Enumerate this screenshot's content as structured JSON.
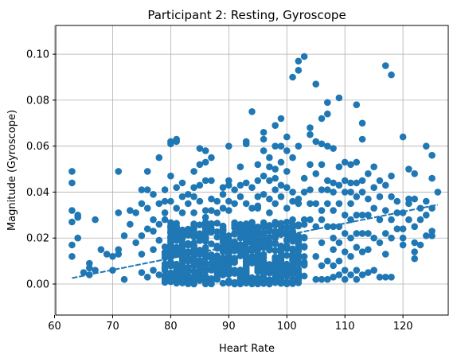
{
  "chart_data": {
    "type": "scatter",
    "title": "Participant 2: Resting, Gyroscope",
    "xlabel": "Heart Rate",
    "ylabel": "Magnitude (Gyroscope)",
    "xlim": [
      60.2,
      127.8
    ],
    "ylim": [
      -0.0135,
      0.1125
    ],
    "xticks": [
      60,
      70,
      80,
      90,
      100,
      110,
      120
    ],
    "xtick_labels": [
      "60",
      "70",
      "80",
      "90",
      "100",
      "110",
      "120"
    ],
    "yticks": [
      0.0,
      0.02,
      0.04,
      0.06,
      0.08,
      0.1
    ],
    "ytick_labels": [
      "0.00",
      "0.02",
      "0.04",
      "0.06",
      "0.08",
      "0.10"
    ],
    "grid": true,
    "colors": {
      "points": "#1f77b4",
      "grid": "#b0b0b0",
      "frame": "#000000"
    },
    "trend_line": {
      "x": [
        63,
        126
      ],
      "y": [
        0.0026,
        0.0345
      ]
    },
    "dense_cluster": {
      "x_range": [
        79,
        103
      ],
      "y_range": [
        0.0,
        0.027
      ],
      "count": 700
    },
    "points": [
      [
        63,
        0.049
      ],
      [
        63,
        0.044
      ],
      [
        63,
        0.032
      ],
      [
        63,
        0.027
      ],
      [
        63,
        0.017
      ],
      [
        63,
        0.012
      ],
      [
        64,
        0.03
      ],
      [
        64,
        0.02
      ],
      [
        64,
        0.029
      ],
      [
        65,
        0.005
      ],
      [
        66,
        0.007
      ],
      [
        66,
        0.004
      ],
      [
        66,
        0.009
      ],
      [
        67,
        0.028
      ],
      [
        67,
        0.006
      ],
      [
        68,
        0.015
      ],
      [
        69,
        0.013
      ],
      [
        70,
        0.006
      ],
      [
        70,
        0.012
      ],
      [
        71,
        0.049
      ],
      [
        71,
        0.031
      ],
      [
        71,
        0.015
      ],
      [
        71,
        0.013
      ],
      [
        72,
        0.002
      ],
      [
        72,
        0.021
      ],
      [
        73,
        0.026
      ],
      [
        73,
        0.032
      ],
      [
        74,
        0.031
      ],
      [
        74,
        0.018
      ],
      [
        75,
        0.041
      ],
      [
        75,
        0.035
      ],
      [
        75,
        0.021
      ],
      [
        75,
        0.013
      ],
      [
        75,
        0.005
      ],
      [
        76,
        0.049
      ],
      [
        76,
        0.033
      ],
      [
        76,
        0.024
      ],
      [
        76,
        0.041
      ],
      [
        76,
        0.003
      ],
      [
        77,
        0.028
      ],
      [
        77,
        0.023
      ],
      [
        77,
        0.015
      ],
      [
        77,
        0.006
      ],
      [
        77,
        0.039
      ],
      [
        78,
        0.055
      ],
      [
        78,
        0.035
      ],
      [
        78,
        0.026
      ],
      [
        78,
        0.019
      ],
      [
        78,
        0.004
      ],
      [
        79,
        0.041
      ],
      [
        79,
        0.036
      ],
      [
        79,
        0.031
      ],
      [
        79,
        0.028
      ],
      [
        80,
        0.062
      ],
      [
        80,
        0.061
      ],
      [
        80,
        0.047
      ],
      [
        80,
        0.036
      ],
      [
        81,
        0.063
      ],
      [
        81,
        0.062
      ],
      [
        81,
        0.042
      ],
      [
        81,
        0.033
      ],
      [
        82,
        0.044
      ],
      [
        82,
        0.038
      ],
      [
        82,
        0.031
      ],
      [
        83,
        0.039
      ],
      [
        83,
        0.035
      ],
      [
        84,
        0.049
      ],
      [
        84,
        0.042
      ],
      [
        84,
        0.038
      ],
      [
        84,
        0.031
      ],
      [
        85,
        0.059
      ],
      [
        85,
        0.052
      ],
      [
        85,
        0.043
      ],
      [
        85,
        0.036
      ],
      [
        86,
        0.058
      ],
      [
        86,
        0.053
      ],
      [
        86,
        0.045
      ],
      [
        86,
        0.032
      ],
      [
        86,
        0.029
      ],
      [
        87,
        0.055
      ],
      [
        87,
        0.045
      ],
      [
        87,
        0.037
      ],
      [
        87,
        0.032
      ],
      [
        88,
        0.036
      ],
      [
        88,
        0.031
      ],
      [
        89,
        0.042
      ],
      [
        89,
        0.039
      ],
      [
        89,
        0.033
      ],
      [
        90,
        0.06
      ],
      [
        90,
        0.045
      ],
      [
        90,
        0.043
      ],
      [
        90,
        0.036
      ],
      [
        90,
        0.032
      ],
      [
        91,
        0.041
      ],
      [
        91,
        0.035
      ],
      [
        92,
        0.051
      ],
      [
        92,
        0.043
      ],
      [
        92,
        0.038
      ],
      [
        93,
        0.062
      ],
      [
        93,
        0.061
      ],
      [
        93,
        0.044
      ],
      [
        93,
        0.035
      ],
      [
        94,
        0.075
      ],
      [
        94,
        0.042
      ],
      [
        94,
        0.033
      ],
      [
        95,
        0.052
      ],
      [
        95,
        0.045
      ],
      [
        95,
        0.038
      ],
      [
        95,
        0.034
      ],
      [
        95,
        0.033
      ],
      [
        96,
        0.066
      ],
      [
        96,
        0.063
      ],
      [
        96,
        0.058
      ],
      [
        96,
        0.047
      ],
      [
        96,
        0.039
      ],
      [
        97,
        0.055
      ],
      [
        97,
        0.051
      ],
      [
        97,
        0.045
      ],
      [
        97,
        0.037
      ],
      [
        97,
        0.031
      ],
      [
        98,
        0.069
      ],
      [
        98,
        0.06
      ],
      [
        98,
        0.05
      ],
      [
        98,
        0.046
      ],
      [
        98,
        0.041
      ],
      [
        98,
        0.035
      ],
      [
        99,
        0.072
      ],
      [
        99,
        0.06
      ],
      [
        99,
        0.053
      ],
      [
        99,
        0.043
      ],
      [
        99,
        0.038
      ],
      [
        100,
        0.064
      ],
      [
        100,
        0.058
      ],
      [
        100,
        0.049
      ],
      [
        100,
        0.042
      ],
      [
        100,
        0.033
      ],
      [
        101,
        0.09
      ],
      [
        101,
        0.055
      ],
      [
        101,
        0.04
      ],
      [
        101,
        0.036
      ],
      [
        101,
        0.028
      ],
      [
        102,
        0.097
      ],
      [
        102,
        0.093
      ],
      [
        102,
        0.06
      ],
      [
        102,
        0.037
      ],
      [
        102,
        0.035
      ],
      [
        103,
        0.099
      ],
      [
        103,
        0.046
      ],
      [
        103,
        0.04
      ],
      [
        103,
        0.028
      ],
      [
        103,
        0.02
      ],
      [
        104,
        0.068
      ],
      [
        104,
        0.065
      ],
      [
        104,
        0.052
      ],
      [
        104,
        0.041
      ],
      [
        104,
        0.035
      ],
      [
        104,
        0.028
      ],
      [
        105,
        0.087
      ],
      [
        105,
        0.062
      ],
      [
        105,
        0.048
      ],
      [
        105,
        0.035
      ],
      [
        105,
        0.025
      ],
      [
        105,
        0.012
      ],
      [
        105,
        0.002
      ],
      [
        106,
        0.072
      ],
      [
        106,
        0.061
      ],
      [
        106,
        0.052
      ],
      [
        106,
        0.041
      ],
      [
        106,
        0.032
      ],
      [
        106,
        0.028
      ],
      [
        106,
        0.018
      ],
      [
        106,
        0.008
      ],
      [
        106,
        0.002
      ],
      [
        107,
        0.079
      ],
      [
        107,
        0.074
      ],
      [
        107,
        0.06
      ],
      [
        107,
        0.045
      ],
      [
        107,
        0.041
      ],
      [
        107,
        0.035
      ],
      [
        107,
        0.025
      ],
      [
        107,
        0.01
      ],
      [
        107,
        0.002
      ],
      [
        108,
        0.059
      ],
      [
        108,
        0.044
      ],
      [
        108,
        0.04
      ],
      [
        108,
        0.032
      ],
      [
        108,
        0.025
      ],
      [
        108,
        0.02
      ],
      [
        108,
        0.015
      ],
      [
        108,
        0.008
      ],
      [
        108,
        0.003
      ],
      [
        109,
        0.081
      ],
      [
        109,
        0.051
      ],
      [
        109,
        0.043
      ],
      [
        109,
        0.035
      ],
      [
        109,
        0.025
      ],
      [
        109,
        0.018
      ],
      [
        109,
        0.01
      ],
      [
        109,
        0.004
      ],
      [
        110,
        0.053
      ],
      [
        110,
        0.045
      ],
      [
        110,
        0.04
      ],
      [
        110,
        0.03
      ],
      [
        110,
        0.022
      ],
      [
        110,
        0.014
      ],
      [
        110,
        0.006
      ],
      [
        110,
        0.002
      ],
      [
        111,
        0.052
      ],
      [
        111,
        0.044
      ],
      [
        111,
        0.04
      ],
      [
        111,
        0.035
      ],
      [
        111,
        0.028
      ],
      [
        111,
        0.02
      ],
      [
        111,
        0.012
      ],
      [
        111,
        0.004
      ],
      [
        112,
        0.078
      ],
      [
        112,
        0.053
      ],
      [
        112,
        0.044
      ],
      [
        112,
        0.038
      ],
      [
        112,
        0.03
      ],
      [
        112,
        0.022
      ],
      [
        112,
        0.016
      ],
      [
        112,
        0.006
      ],
      [
        112,
        0.002
      ],
      [
        113,
        0.07
      ],
      [
        113,
        0.063
      ],
      [
        113,
        0.045
      ],
      [
        113,
        0.04
      ],
      [
        113,
        0.03
      ],
      [
        113,
        0.022
      ],
      [
        113,
        0.014
      ],
      [
        113,
        0.004
      ],
      [
        114,
        0.048
      ],
      [
        114,
        0.037
      ],
      [
        114,
        0.03
      ],
      [
        114,
        0.022
      ],
      [
        114,
        0.015
      ],
      [
        114,
        0.005
      ],
      [
        115,
        0.051
      ],
      [
        115,
        0.042
      ],
      [
        115,
        0.033
      ],
      [
        115,
        0.02
      ],
      [
        115,
        0.006
      ],
      [
        116,
        0.045
      ],
      [
        116,
        0.038
      ],
      [
        116,
        0.028
      ],
      [
        116,
        0.018
      ],
      [
        116,
        0.003
      ],
      [
        117,
        0.095
      ],
      [
        117,
        0.043
      ],
      [
        117,
        0.032
      ],
      [
        117,
        0.022
      ],
      [
        117,
        0.013
      ],
      [
        117,
        0.003
      ],
      [
        118,
        0.091
      ],
      [
        118,
        0.047
      ],
      [
        118,
        0.038
      ],
      [
        118,
        0.028
      ],
      [
        118,
        0.02
      ],
      [
        118,
        0.003
      ],
      [
        119,
        0.036
      ],
      [
        119,
        0.031
      ],
      [
        119,
        0.024
      ],
      [
        120,
        0.064
      ],
      [
        120,
        0.031
      ],
      [
        120,
        0.024
      ],
      [
        120,
        0.02
      ],
      [
        120,
        0.017
      ],
      [
        121,
        0.05
      ],
      [
        121,
        0.037
      ],
      [
        121,
        0.035
      ],
      [
        121,
        0.028
      ],
      [
        122,
        0.048
      ],
      [
        122,
        0.037
      ],
      [
        122,
        0.025
      ],
      [
        122,
        0.018
      ],
      [
        122,
        0.014
      ],
      [
        122,
        0.011
      ],
      [
        123,
        0.033
      ],
      [
        123,
        0.028
      ],
      [
        123,
        0.017
      ],
      [
        124,
        0.06
      ],
      [
        124,
        0.036
      ],
      [
        124,
        0.03
      ],
      [
        124,
        0.021
      ],
      [
        125,
        0.056
      ],
      [
        125,
        0.046
      ],
      [
        125,
        0.033
      ],
      [
        125,
        0.023
      ],
      [
        125,
        0.021
      ],
      [
        126,
        0.04
      ]
    ]
  }
}
